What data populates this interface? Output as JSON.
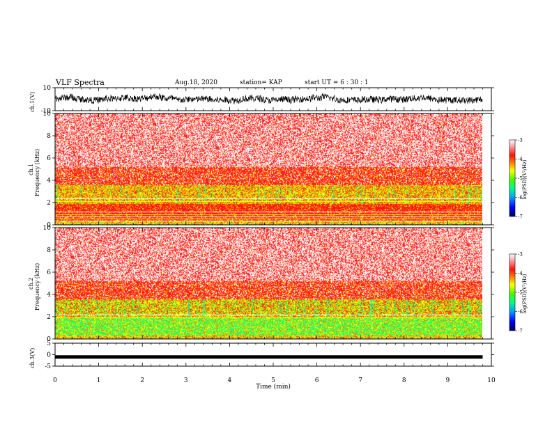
{
  "header": {
    "title": "VLF Spectra",
    "date": "Aug.18, 2020",
    "station": "station= KAP",
    "start": "start  UT =   6  : 30 : 1"
  },
  "colors": {
    "waveform": "#000000",
    "colormap": [
      "#000080",
      "#0000ff",
      "#00c0ff",
      "#00ff80",
      "#40ff00",
      "#ffff00",
      "#ffb000",
      "#ff2020",
      "#ffd0d0",
      "#ffffff"
    ]
  },
  "chart_data": [
    {
      "type": "line",
      "panel": "ch1-waveform",
      "ylabel": "ch.1(V)",
      "ylim": [
        -10,
        10
      ],
      "yticks": [
        "10",
        "-10"
      ],
      "description_level": "dense noisy trace roughly between -2 and 6 V"
    },
    {
      "type": "heatmap",
      "panel": "ch1-spectrogram",
      "ylabel_top": "ch.1",
      "ylabel": "Frequency (kHz)",
      "ylim": [
        0,
        10
      ],
      "yticks": [
        "0",
        "2",
        "4",
        "6",
        "8",
        "10"
      ],
      "colorbar": {
        "label": "log(PSD)(V²/Hz)",
        "range": [
          -7,
          -3
        ],
        "ticks": [
          "-3",
          "-4",
          "-5",
          "-6",
          "-7"
        ]
      }
    },
    {
      "type": "heatmap",
      "panel": "ch2-spectrogram",
      "ylabel_top": "ch.2",
      "ylabel": "Frequency (kHz)",
      "ylim": [
        0,
        10
      ],
      "yticks": [
        "0",
        "2",
        "4",
        "6",
        "8",
        "10"
      ],
      "colorbar": {
        "label": "log(PSD)(V²/Hz)",
        "range": [
          -7,
          -3
        ],
        "ticks": [
          "-3",
          "-4",
          "-5",
          "-6",
          "-7"
        ]
      }
    },
    {
      "type": "line",
      "panel": "ch3-waveform",
      "ylabel": "ch.3(V)",
      "ylim": [
        -5,
        5
      ],
      "yticks": [
        "5",
        "0",
        "-5"
      ],
      "level": -1
    }
  ],
  "x_axis": {
    "label": "Time  (min)",
    "range": [
      0,
      10
    ],
    "ticks": [
      "0",
      "1",
      "2",
      "3",
      "4",
      "5",
      "6",
      "7",
      "8",
      "9",
      "10"
    ],
    "data_end": 9.8
  }
}
